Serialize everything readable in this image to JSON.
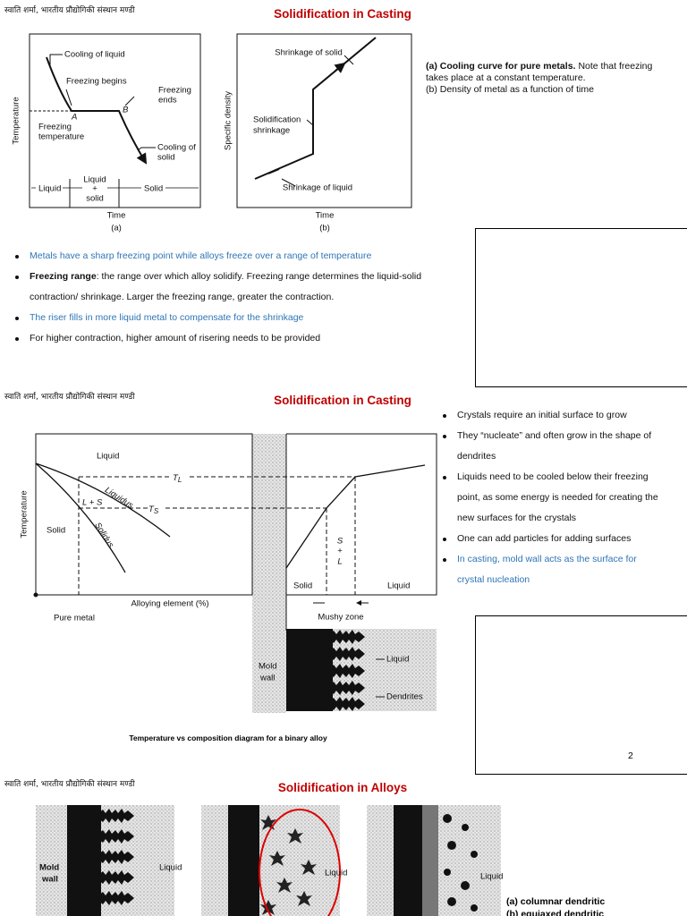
{
  "slides": [
    {
      "header": "स्वाति शर्मा, भारतीय प्रौद्योगिकी संस्थान मण्डी",
      "title": "Solidification in Casting",
      "figure_a": {
        "axis_y": "Temperature",
        "axis_x": "Time",
        "tag": "(a)",
        "labels": {
          "cooling_liquid": "Cooling of liquid",
          "freezing_begins": "Freezing begins",
          "freezing_ends": [
            "Freezing",
            "ends"
          ],
          "point_a": "A",
          "point_b": "B",
          "freezing_temperature": [
            "Freezing",
            "temperature"
          ],
          "cooling_solid": [
            "Cooling of",
            "solid"
          ],
          "liquid": "Liquid",
          "liquid_solid": [
            "Liquid",
            "+",
            "solid"
          ],
          "solid": "Solid"
        }
      },
      "figure_b": {
        "axis_y": "Specific density",
        "axis_x": "Time",
        "tag": "(b)",
        "labels": {
          "shrinkage_solid": "Shrinkage of solid",
          "solidification_shrinkage": [
            "Solidification",
            "shrinkage"
          ],
          "shrinkage_liquid": "Shrinkage of liquid"
        }
      },
      "caption": {
        "a_bold": "(a) Cooling curve for pure metals.",
        "a_text": "Note that freezing takes place at a constant temperature.",
        "b_text": "(b) Density of metal as a function of time"
      },
      "bullets": [
        {
          "text": "Metals have a sharp freezing point while alloys freeze over a range of temperature",
          "color": "#2e75b6"
        },
        {
          "bold": "Freezing range",
          "text": ": the range over which alloy solidify. Freezing range determines the liquid-solid  contraction/ shrinkage. Larger the freezing range, greater the contraction."
        },
        {
          "text": "The riser fills in more liquid metal to compensate for the shrinkage",
          "color": "#2e75b6"
        },
        {
          "text": "For higher contraction, higher amount of risering needs to be provided"
        }
      ]
    },
    {
      "header": "स्वाति शर्मा, भारतीय प्रौद्योगिकी संस्थान मण्डी",
      "title": "Solidification in Casting",
      "phase_diagram": {
        "axis_y": "Temperature",
        "axis_x": "Alloying element (%)",
        "labels": {
          "liquid": "Liquid",
          "t_l": {
            "symbol": "T",
            "subscript": "L"
          },
          "l_s": "L + S",
          "liquidus": "Liquidus",
          "t_s": {
            "symbol": "T",
            "subscript": "S"
          },
          "solidus": "Solidus",
          "solid": "Solid",
          "pure_metal": "Pure metal",
          "s_l": [
            "S",
            "+",
            "L"
          ],
          "right_solid": "Solid",
          "right_liquid": "Liquid",
          "mushy_zone": "Mushy zone"
        }
      },
      "mold_figure": {
        "mold_wall": [
          "Mold",
          "wall"
        ],
        "liquid": "Liquid",
        "dendrites": "Dendrites"
      },
      "figure_caption": "Temperature vs composition diagram for a binary alloy",
      "bullets": [
        {
          "text": "Crystals require an initial surface to grow"
        },
        {
          "text": "They “nucleate” and often grow in the shape of dendrites"
        },
        {
          "text": "Liquids need to be cooled below their freezing point, as some energy is needed for creating the new surfaces for the crystals"
        },
        {
          "text": "One can add particles for adding surfaces"
        },
        {
          "text": "In casting, mold wall acts as the surface for crystal nucleation",
          "color": "#2e75b6"
        }
      ],
      "page_number": "2"
    },
    {
      "header": "स्वाति शर्मा, भारतीय प्रौद्योगिकी संस्थान मण्डी",
      "title": "Solidification in Alloys",
      "images": [
        {
          "mold_wall": [
            "Mold",
            "wall"
          ],
          "liquid": "Liquid"
        },
        {
          "liquid": "Liquid"
        },
        {
          "liquid": "Liquid"
        }
      ],
      "captions": [
        "(a)  columnar dendritic",
        "(b)  equiaxed dendritic"
      ]
    }
  ]
}
